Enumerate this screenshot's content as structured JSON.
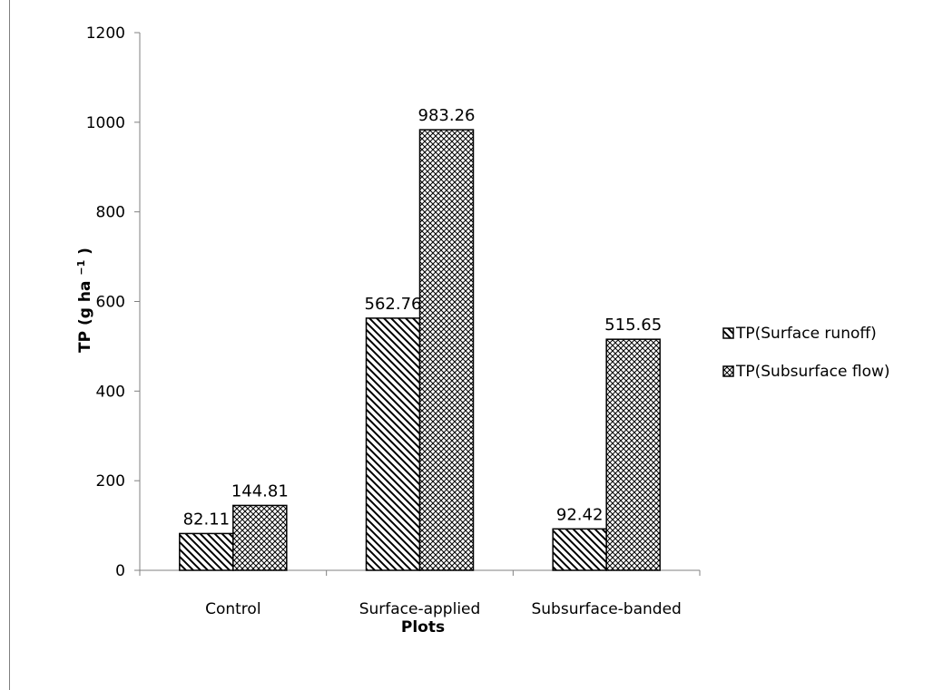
{
  "chart_data": {
    "type": "bar",
    "categories": [
      "Control",
      "Surface-applied",
      "Subsurface-banded"
    ],
    "series": [
      {
        "name": "TP(Surface runoff)",
        "values": [
          82.11,
          562.76,
          92.42
        ],
        "pattern": "diagonal-hatch"
      },
      {
        "name": "TP(Subsurface flow)",
        "values": [
          144.81,
          983.26,
          515.65
        ],
        "pattern": "cross-hatch"
      }
    ],
    "data_labels": [
      [
        "82.11",
        "562.76",
        "92.42"
      ],
      [
        "144.81",
        "983.26",
        "515.65"
      ]
    ],
    "xlabel": "Plots",
    "ylabel_main": "TP (g ha",
    "ylabel_sup": "−1",
    "ylabel_close": ")",
    "ylim": [
      0,
      1200
    ],
    "yticks": [
      0,
      200,
      400,
      600,
      800,
      1000,
      1200
    ],
    "grid": false,
    "legend_position": "right"
  },
  "colors": {
    "bar_stroke": "#000000",
    "pattern_line": "#000000",
    "axis": "#808080"
  }
}
